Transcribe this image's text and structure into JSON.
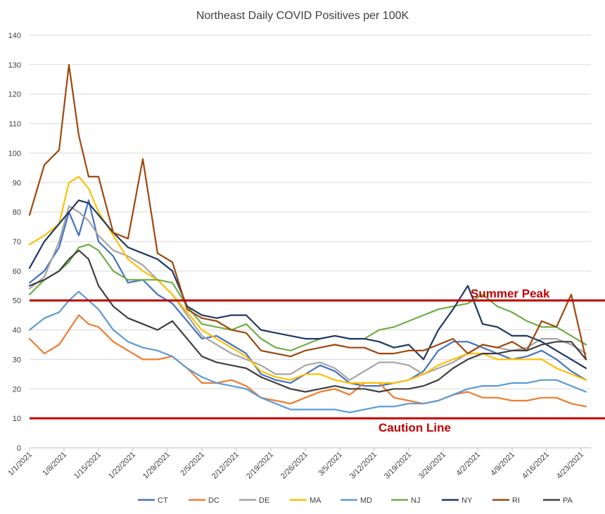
{
  "chart_data": {
    "type": "line",
    "title": "Northeast Daily COVID Positives per 100K",
    "xlabel": "",
    "ylabel": "",
    "ylim": [
      0,
      140
    ],
    "yticks": [
      0,
      10,
      20,
      30,
      40,
      50,
      60,
      70,
      80,
      90,
      100,
      110,
      120,
      130,
      140
    ],
    "xlim": [
      "2021-01-01",
      "2021-04-25"
    ],
    "x_tick_labels": [
      "1/1/2021",
      "1/8/2021",
      "1/15/2021",
      "1/22/2021",
      "1/29/2021",
      "2/5/2021",
      "2/12/2021",
      "2/19/2021",
      "2/26/2021",
      "3/5/2021",
      "3/12/2021",
      "3/19/2021",
      "3/26/2021",
      "4/2/2021",
      "4/9/2021",
      "4/16/2021",
      "4/23/2021"
    ],
    "grid": "horizontal",
    "legend": "bottom",
    "reference_lines": [
      {
        "label": "Summer Peak",
        "value": 50,
        "color": "#c00000"
      },
      {
        "label": "Caution Line",
        "value": 10,
        "color": "#c00000"
      }
    ],
    "x": [
      "1/1",
      "1/4",
      "1/7",
      "1/9",
      "1/11",
      "1/13",
      "1/15",
      "1/18",
      "1/21",
      "1/24",
      "1/27",
      "1/30",
      "2/2",
      "2/5",
      "2/8",
      "2/11",
      "2/14",
      "2/17",
      "2/20",
      "2/23",
      "2/26",
      "3/1",
      "3/4",
      "3/7",
      "3/10",
      "3/13",
      "3/16",
      "3/19",
      "3/22",
      "3/25",
      "3/28",
      "3/31",
      "4/3",
      "4/6",
      "4/9",
      "4/12",
      "4/15",
      "4/18",
      "4/21",
      "4/24"
    ],
    "series": [
      {
        "name": "CT",
        "color": "#4472c4",
        "values": [
          56,
          60,
          68,
          80,
          72,
          84,
          70,
          65,
          56,
          57,
          52,
          49,
          43,
          37,
          38,
          35,
          32,
          25,
          23,
          22,
          25,
          28,
          26,
          22,
          21,
          21,
          22,
          23,
          26,
          33,
          36,
          36,
          34,
          32,
          30,
          31,
          33,
          30,
          26,
          23
        ]
      },
      {
        "name": "DC",
        "color": "#ed7d31",
        "values": [
          37,
          32,
          35,
          40,
          45,
          42,
          41,
          36,
          33,
          30,
          30,
          31,
          27,
          22,
          22,
          23,
          21,
          17,
          16,
          15,
          17,
          19,
          20,
          18,
          22,
          22,
          17,
          16,
          15,
          16,
          18,
          19,
          17,
          17,
          16,
          16,
          17,
          17,
          15,
          14
        ]
      },
      {
        "name": "DE",
        "color": "#a5a5a5",
        "values": [
          54,
          58,
          70,
          82,
          80,
          77,
          72,
          67,
          65,
          62,
          57,
          52,
          45,
          38,
          35,
          32,
          30,
          28,
          25,
          25,
          28,
          29,
          27,
          23,
          26,
          29,
          29,
          28,
          25,
          27,
          29,
          32,
          35,
          34,
          33,
          34,
          37,
          37,
          35,
          32
        ]
      },
      {
        "name": "MA",
        "color": "#ffc000",
        "values": [
          69,
          72,
          76,
          90,
          92,
          88,
          80,
          72,
          64,
          60,
          57,
          52,
          46,
          40,
          37,
          34,
          31,
          26,
          24,
          23,
          25,
          25,
          23,
          22,
          22,
          22,
          22,
          23,
          25,
          28,
          30,
          32,
          32,
          30,
          30,
          30,
          30,
          27,
          25,
          23
        ]
      },
      {
        "name": "MD",
        "color": "#5b9bd5",
        "values": [
          40,
          44,
          46,
          50,
          53,
          50,
          47,
          40,
          36,
          34,
          33,
          31,
          27,
          24,
          22,
          21,
          20,
          17,
          15,
          13,
          13,
          13,
          13,
          12,
          13,
          14,
          14,
          15,
          15,
          16,
          18,
          20,
          21,
          21,
          22,
          22,
          23,
          23,
          21,
          19
        ]
      },
      {
        "name": "NJ",
        "color": "#70ad47",
        "values": [
          52,
          57,
          60,
          63,
          68,
          69,
          67,
          60,
          57,
          57,
          57,
          56,
          48,
          42,
          41,
          40,
          42,
          37,
          34,
          33,
          35,
          37,
          38,
          37,
          37,
          40,
          41,
          43,
          45,
          47,
          48,
          49,
          52,
          48,
          46,
          43,
          41,
          41,
          38,
          35
        ]
      },
      {
        "name": "NY",
        "color": "#203864",
        "values": [
          61,
          70,
          76,
          80,
          84,
          83,
          79,
          73,
          68,
          66,
          64,
          60,
          48,
          45,
          44,
          45,
          45,
          40,
          39,
          38,
          37,
          37,
          38,
          37,
          37,
          36,
          34,
          35,
          30,
          40,
          47,
          55,
          42,
          41,
          38,
          38,
          36,
          33,
          30,
          27
        ]
      },
      {
        "name": "RI",
        "color": "#9e480e",
        "values": [
          79,
          96,
          101,
          130,
          106,
          92,
          92,
          73,
          71,
          98,
          66,
          63,
          47,
          44,
          43,
          40,
          39,
          33,
          32,
          31,
          33,
          34,
          35,
          34,
          34,
          32,
          32,
          33,
          33,
          35,
          37,
          32,
          35,
          34,
          36,
          33,
          43,
          41,
          52,
          30
        ]
      },
      {
        "name": "PA",
        "color": "#404040",
        "values": [
          55,
          57,
          60,
          64,
          67,
          64,
          55,
          48,
          44,
          42,
          40,
          43,
          37,
          31,
          29,
          28,
          27,
          24,
          22,
          20,
          19,
          20,
          21,
          20,
          20,
          19,
          20,
          20,
          21,
          23,
          27,
          30,
          32,
          32,
          33,
          33,
          35,
          36,
          36,
          30
        ]
      }
    ]
  }
}
